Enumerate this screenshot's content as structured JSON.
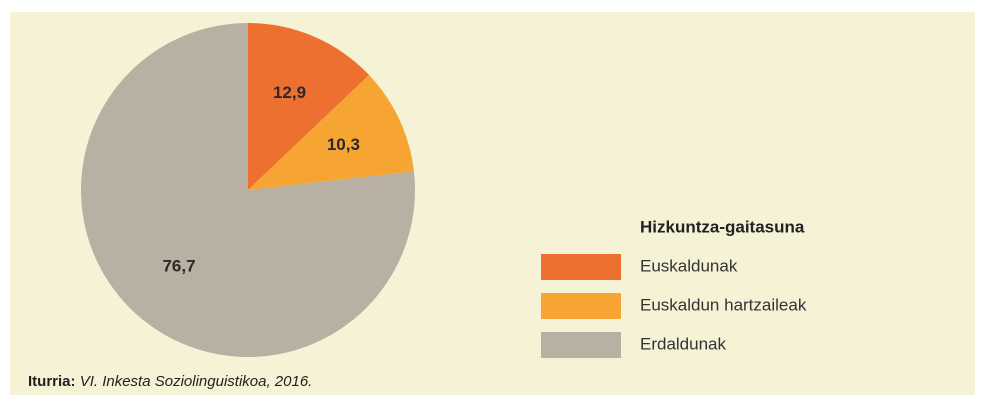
{
  "chart_data": {
    "type": "pie",
    "categories": [
      "Euskaldunak",
      "Euskaldun hartzaileak",
      "Erdaldunak"
    ],
    "values": [
      12.9,
      10.3,
      76.7
    ],
    "value_labels": [
      "12,9",
      "10,3",
      "76,7"
    ],
    "colors": [
      "#ee7031",
      "#f6a532",
      "#b8b0a2"
    ],
    "legend_title": "Hizkuntza-gaitasuna",
    "legend": "right",
    "source_label": "Iturria:",
    "source_text": "VI. Inkesta Soziolinguistikoa, 2016."
  }
}
